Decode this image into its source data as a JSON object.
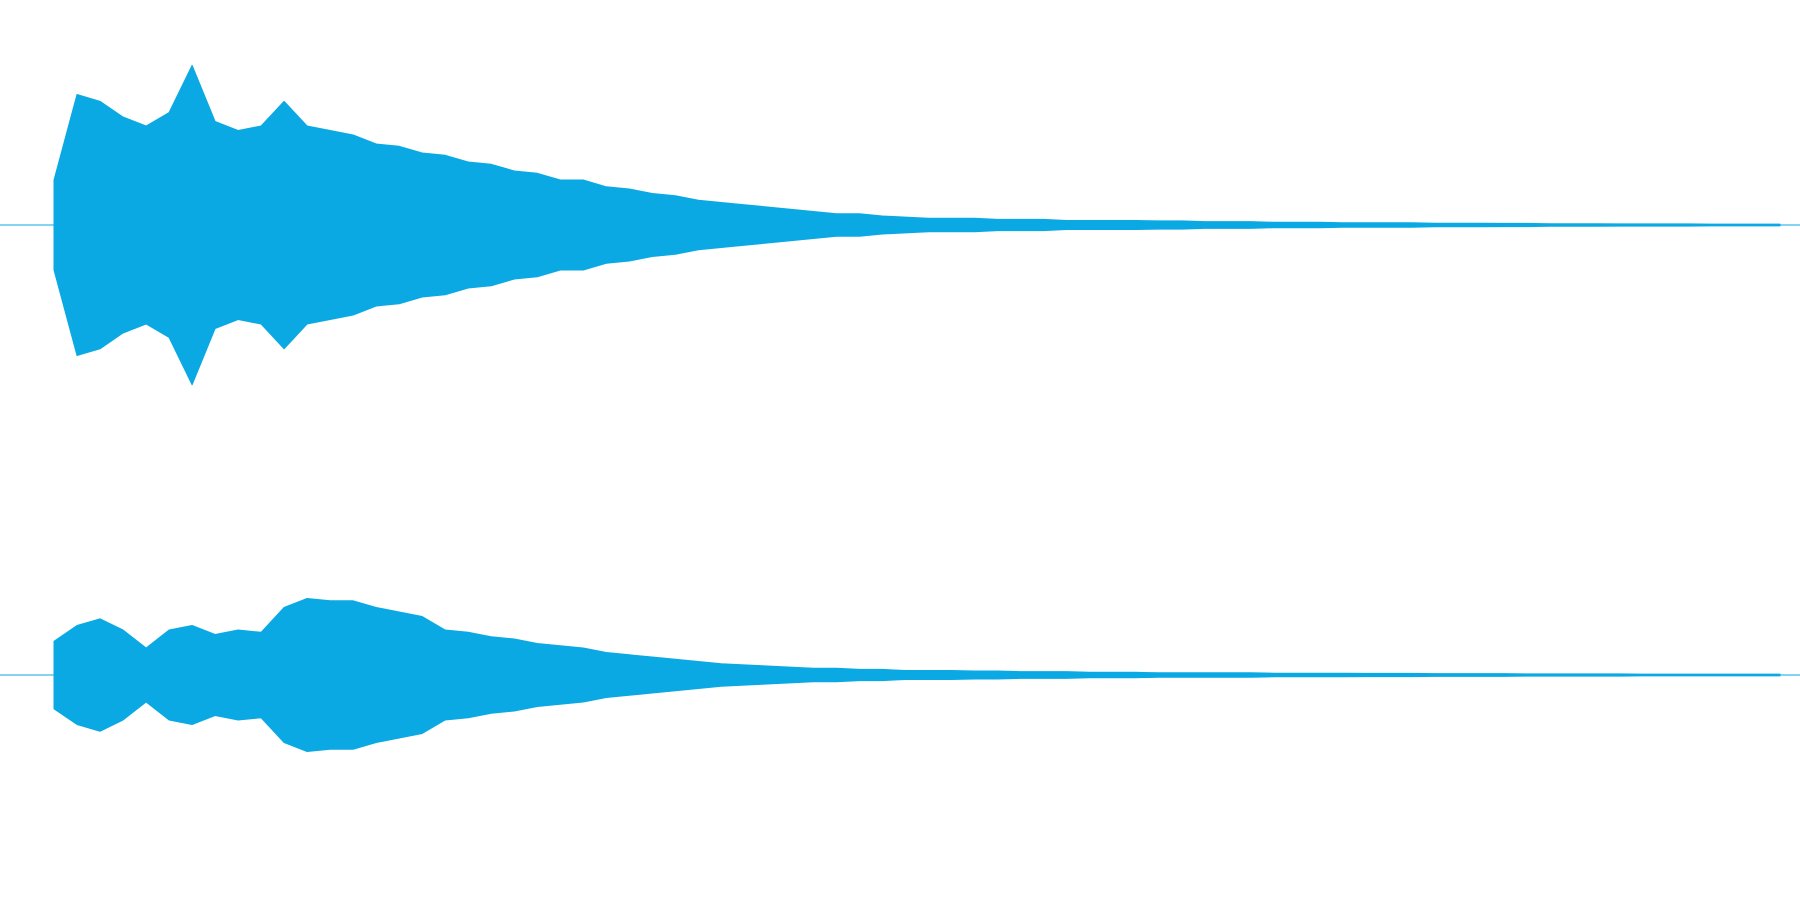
{
  "chart_data": [
    {
      "type": "area",
      "color": "#0aa9e3",
      "ylim": [
        -1,
        1
      ],
      "values": [
        0.2,
        0.58,
        0.55,
        0.48,
        0.44,
        0.5,
        0.71,
        0.46,
        0.42,
        0.44,
        0.55,
        0.44,
        0.42,
        0.4,
        0.36,
        0.35,
        0.32,
        0.31,
        0.28,
        0.27,
        0.24,
        0.23,
        0.2,
        0.2,
        0.17,
        0.16,
        0.14,
        0.13,
        0.11,
        0.1,
        0.09,
        0.08,
        0.07,
        0.06,
        0.05,
        0.05,
        0.04,
        0.035,
        0.03,
        0.03,
        0.03,
        0.025,
        0.025,
        0.025,
        0.02,
        0.02,
        0.02,
        0.02,
        0.018,
        0.018,
        0.015,
        0.015,
        0.015,
        0.012,
        0.012,
        0.012,
        0.01,
        0.01,
        0.01,
        0.01,
        0.008,
        0.008,
        0.008,
        0.007,
        0.007,
        0.006,
        0.006,
        0.006,
        0.005,
        0.005,
        0.005,
        0.005,
        0.004,
        0.004,
        0.004,
        0.004
      ]
    },
    {
      "type": "area",
      "color": "#0aa9e3",
      "ylim": [
        -1,
        1
      ],
      "values": [
        0.15,
        0.22,
        0.25,
        0.2,
        0.12,
        0.2,
        0.22,
        0.18,
        0.2,
        0.19,
        0.3,
        0.34,
        0.33,
        0.33,
        0.3,
        0.28,
        0.26,
        0.2,
        0.19,
        0.17,
        0.16,
        0.14,
        0.13,
        0.12,
        0.1,
        0.09,
        0.08,
        0.07,
        0.06,
        0.05,
        0.045,
        0.04,
        0.035,
        0.03,
        0.03,
        0.025,
        0.025,
        0.02,
        0.02,
        0.02,
        0.018,
        0.018,
        0.015,
        0.015,
        0.015,
        0.012,
        0.012,
        0.012,
        0.01,
        0.01,
        0.01,
        0.01,
        0.01,
        0.008,
        0.008,
        0.008,
        0.008,
        0.007,
        0.007,
        0.007,
        0.006,
        0.006,
        0.006,
        0.006,
        0.005,
        0.005,
        0.005,
        0.005,
        0.005,
        0.004,
        0.004,
        0.004,
        0.004,
        0.004,
        0.004,
        0.004
      ]
    }
  ]
}
